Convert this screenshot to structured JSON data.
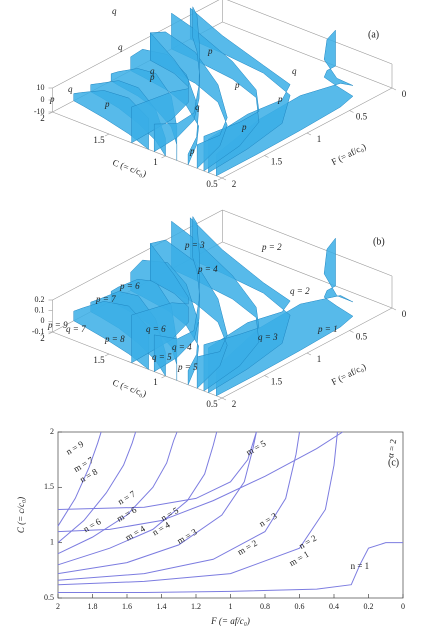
{
  "chart_data": [
    {
      "type": "surface3d",
      "panel_label": "(a)",
      "xlabel": "C (= c/c₀)",
      "ylabel": "F (= af/c₀)",
      "xlim": [
        0.5,
        2
      ],
      "xticks": [
        2,
        1.5,
        1,
        0.5
      ],
      "ylim": [
        0,
        2
      ],
      "yticks": [
        2,
        1.5,
        1,
        0.5,
        0
      ],
      "zlim": [
        -10,
        10
      ],
      "zticks": [
        10,
        0,
        -10
      ],
      "color": "#39aee6",
      "annotations": [
        {
          "text": "q",
          "color": "#e03030"
        },
        {
          "text": "q",
          "color": "#e03030"
        },
        {
          "text": "q",
          "color": "#e03030"
        },
        {
          "text": "q",
          "color": "#e03030"
        },
        {
          "text": "q",
          "color": "#e03030"
        },
        {
          "text": "q",
          "color": "#e03030"
        },
        {
          "text": "p",
          "color": "#222222"
        },
        {
          "text": "p",
          "color": "#222222"
        },
        {
          "text": "p",
          "color": "#222222"
        },
        {
          "text": "p",
          "color": "#222222"
        },
        {
          "text": "p",
          "color": "#222222"
        },
        {
          "text": "p",
          "color": "#222222"
        },
        {
          "text": "p",
          "color": "#222222"
        },
        {
          "text": "p",
          "color": "#222222"
        }
      ]
    },
    {
      "type": "surface3d",
      "panel_label": "(b)",
      "xlabel": "C (= c/c₀)",
      "ylabel": "F (= af/c₀)",
      "xlim": [
        0.5,
        2
      ],
      "xticks": [
        2,
        1.5,
        1,
        0.5
      ],
      "ylim": [
        0,
        2
      ],
      "yticks": [
        2,
        1.5,
        1,
        0.5,
        0
      ],
      "zlim": [
        -0.1,
        0.2
      ],
      "zticks": [
        0.2,
        0.1,
        0,
        -0.1
      ],
      "color": "#39aee6",
      "annotations": [
        {
          "text": "p = 2",
          "color": "#222222"
        },
        {
          "text": "p = 3",
          "color": "#222222"
        },
        {
          "text": "p = 4",
          "color": "#222222"
        },
        {
          "text": "p = 6",
          "color": "#222222"
        },
        {
          "text": "p = 7",
          "color": "#222222"
        },
        {
          "text": "p = 9",
          "color": "#222222"
        },
        {
          "text": "p = 8",
          "color": "#222222"
        },
        {
          "text": "p = 5",
          "color": "#222222"
        },
        {
          "text": "p = 1",
          "color": "#222222"
        },
        {
          "text": "q = 2",
          "color": "#e03030"
        },
        {
          "text": "q = 3",
          "color": "#e03030"
        },
        {
          "text": "q = 4",
          "color": "#e03030"
        },
        {
          "text": "q = 5",
          "color": "#e03030"
        },
        {
          "text": "q = 6",
          "color": "#e03030"
        },
        {
          "text": "q = 7",
          "color": "#e03030"
        }
      ]
    },
    {
      "type": "line",
      "panel_label": "(c)",
      "xlabel": "F (= af/c₀)",
      "ylabel": "C (= c/c₀)",
      "xlim": [
        2,
        0
      ],
      "ylim": [
        0.5,
        2
      ],
      "xticks": [
        2,
        1.8,
        1.6,
        1.4,
        1.2,
        1,
        0.8,
        0.6,
        0.4,
        0.2,
        0
      ],
      "yticks": [
        0.5,
        1,
        1.5,
        2
      ],
      "color": "#7c7ce0",
      "series": [
        {
          "x": [
            2,
            1.5,
            1,
            0.5,
            0.3,
            0.25,
            0.2,
            0.1,
            0
          ],
          "values": [
            0.55,
            0.55,
            0.56,
            0.58,
            0.62,
            0.8,
            0.95,
            1.0,
            1.0
          ]
        },
        {
          "x": [
            2,
            1.5,
            1,
            0.6,
            0.45,
            0.4,
            0.38
          ],
          "values": [
            0.62,
            0.65,
            0.72,
            0.95,
            1.3,
            1.7,
            2.0
          ]
        },
        {
          "x": [
            2,
            1.5,
            1.1,
            0.8,
            0.68,
            0.62,
            0.6
          ],
          "values": [
            0.66,
            0.72,
            0.85,
            1.1,
            1.4,
            1.8,
            2.0
          ]
        },
        {
          "x": [
            2,
            1.6,
            1.3,
            1.05,
            0.92,
            0.87,
            0.85
          ],
          "values": [
            0.72,
            0.82,
            0.98,
            1.25,
            1.55,
            1.85,
            2.0
          ]
        },
        {
          "x": [
            2,
            1.7,
            1.45,
            1.25,
            1.15,
            1.1,
            1.08
          ],
          "values": [
            0.8,
            0.95,
            1.12,
            1.38,
            1.62,
            1.88,
            2.0
          ]
        },
        {
          "x": [
            2,
            1.8,
            1.6,
            1.45,
            1.37,
            1.33,
            1.31
          ],
          "values": [
            0.9,
            1.05,
            1.25,
            1.5,
            1.72,
            1.92,
            2.0
          ]
        },
        {
          "x": [
            2,
            1.85,
            1.72,
            1.62,
            1.57,
            1.55
          ],
          "values": [
            1.0,
            1.2,
            1.45,
            1.7,
            1.9,
            2.0
          ]
        },
        {
          "x": [
            2,
            1.9,
            1.82,
            1.77,
            1.75
          ],
          "values": [
            1.15,
            1.4,
            1.68,
            1.9,
            2.0
          ]
        },
        {
          "x": [
            2,
            1.5,
            1.2,
            1.0,
            0.9,
            0.85
          ],
          "values": [
            1.3,
            1.32,
            1.4,
            1.55,
            1.75,
            2.0
          ]
        },
        {
          "x": [
            2,
            1.7,
            1.4,
            1.1,
            0.8,
            0.5,
            0.35
          ],
          "values": [
            1.1,
            1.12,
            1.2,
            1.38,
            1.6,
            1.85,
            2.0
          ]
        }
      ],
      "annotations": [
        {
          "text": "n = 1",
          "color": "#111111"
        },
        {
          "text": "n = 2",
          "color": "#111111"
        },
        {
          "text": "n = 3",
          "color": "#111111"
        },
        {
          "text": "n = 4",
          "color": "#111111"
        },
        {
          "text": "n = 5",
          "color": "#111111"
        },
        {
          "text": "n = 6",
          "color": "#111111"
        },
        {
          "text": "n = 7",
          "color": "#111111"
        },
        {
          "text": "n = 8",
          "color": "#111111"
        },
        {
          "text": "n = 9",
          "color": "#111111"
        },
        {
          "text": "m = 1",
          "color": "#e03030"
        },
        {
          "text": "m = 2",
          "color": "#e03030"
        },
        {
          "text": "m = 3",
          "color": "#e03030"
        },
        {
          "text": "m = 4",
          "color": "#e03030"
        },
        {
          "text": "m = 5",
          "color": "#e03030"
        },
        {
          "text": "m = 6",
          "color": "#e03030"
        },
        {
          "text": "m = 7",
          "color": "#e03030"
        },
        {
          "text": "α = 2",
          "color": "#999999"
        }
      ]
    }
  ]
}
